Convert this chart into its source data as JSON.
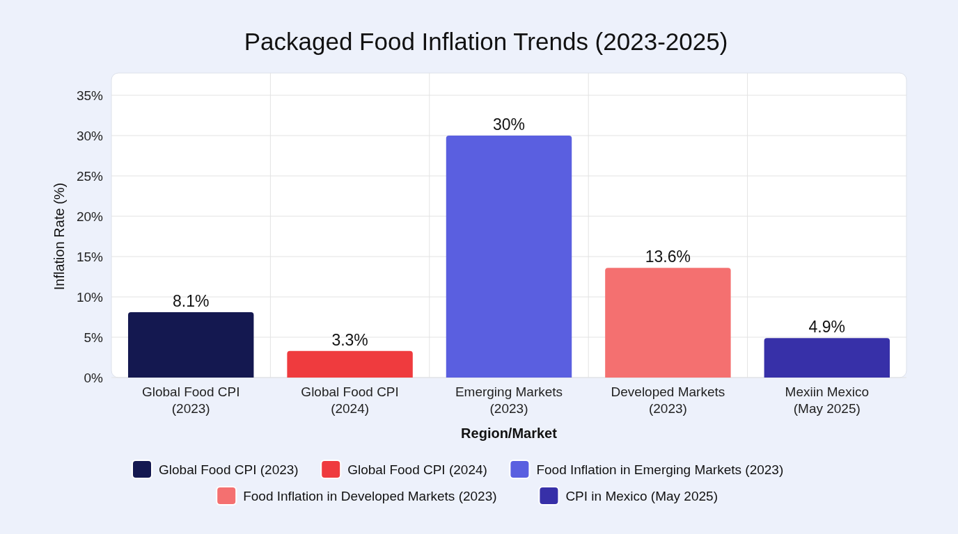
{
  "chart_data": {
    "type": "bar",
    "title": "Packaged Food Inflation Trends (2023-2025)",
    "xlabel": "Region/Market",
    "ylabel": "Inflation Rate (%)",
    "categories": [
      "Global Food CPI\n(2023)",
      "Global Food CPI\n(2024)",
      "Emerging Markets\n(2023)",
      "Developed Markets\n(2023)",
      "Mexiin Mexico\n(May 2025)"
    ],
    "series": [
      {
        "name": "Global Food CPI (2023)",
        "color": "#141850",
        "values": [
          8.1,
          null,
          null,
          null,
          null
        ],
        "value_labels": [
          "8.1%",
          null,
          null,
          null,
          null
        ]
      },
      {
        "name": "Global Food CPI (2024)",
        "color": "#ef3b3e",
        "values": [
          null,
          3.3,
          null,
          null,
          null
        ],
        "value_labels": [
          null,
          "3.3%",
          null,
          null,
          null
        ]
      },
      {
        "name": "Food Inflation in Emerging Markets (2023)",
        "color": "#5a5fe0",
        "values": [
          null,
          null,
          30,
          null,
          null
        ],
        "value_labels": [
          null,
          null,
          "30%",
          null,
          null
        ]
      },
      {
        "name": "Food Inflation in Developed Markets (2023)",
        "color": "#f47070",
        "values": [
          null,
          null,
          null,
          13.6,
          null
        ],
        "value_labels": [
          null,
          null,
          null,
          "13.6%",
          null
        ]
      },
      {
        "name": "CPI in Mexico (May 2025)",
        "color": "#3730a8",
        "values": [
          null,
          null,
          null,
          null,
          4.9
        ],
        "value_labels": [
          null,
          null,
          null,
          null,
          "4.9%"
        ]
      }
    ],
    "ylim": [
      0,
      35
    ],
    "yticks": [
      {
        "value": 0,
        "label": "0%"
      },
      {
        "value": 5,
        "label": "5%"
      },
      {
        "value": 10,
        "label": "10%"
      },
      {
        "value": 15,
        "label": "15%"
      },
      {
        "value": 20,
        "label": "20%"
      },
      {
        "value": 25,
        "label": "25%"
      },
      {
        "value": 30,
        "label": "30%"
      },
      {
        "value": 35,
        "label": "35%"
      }
    ],
    "grid": true,
    "legend": "bottom"
  }
}
